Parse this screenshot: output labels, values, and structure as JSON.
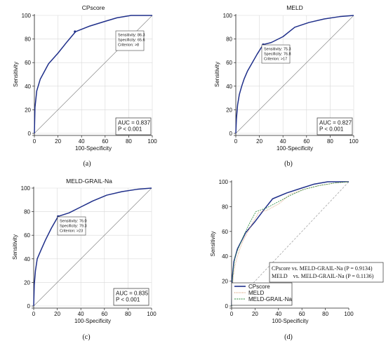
{
  "chart_data": [
    {
      "id": "a",
      "type": "line",
      "title": "CPscore",
      "caption": "(a)",
      "xlabel": "100-Specificity",
      "ylabel": "Sensitivity",
      "xlim": [
        0,
        100
      ],
      "ylim": [
        0,
        100
      ],
      "xticks": [
        0,
        20,
        40,
        60,
        80,
        100
      ],
      "yticks": [
        0,
        20,
        40,
        60,
        80,
        100
      ],
      "grid": true,
      "series": [
        {
          "x": [
            0,
            0.5,
            2,
            5,
            12,
            20,
            28,
            35,
            47,
            60,
            70,
            82,
            100
          ],
          "y": [
            0,
            22,
            36,
            46,
            59,
            68,
            78,
            86.3,
            91,
            95,
            98,
            100,
            100
          ]
        }
      ],
      "reference_line": true,
      "cut_point": {
        "x": 34.4,
        "y": 86.3
      },
      "annotation": [
        "Sensitivity: 86.3",
        "Specificity: 65.6",
        "Criterion: >8"
      ],
      "auc_box": [
        "AUC = 0.837",
        "P < 0.001"
      ]
    },
    {
      "id": "b",
      "type": "line",
      "title": "MELD",
      "caption": "(b)",
      "xlabel": "100-Specificity",
      "ylabel": "Sensitivity",
      "xlim": [
        0,
        100
      ],
      "ylim": [
        0,
        100
      ],
      "xticks": [
        0,
        20,
        40,
        60,
        80,
        100
      ],
      "yticks": [
        0,
        20,
        40,
        60,
        80,
        100
      ],
      "grid": true,
      "series": [
        {
          "x": [
            0,
            0.5,
            1.5,
            3,
            5,
            7,
            10,
            14,
            18,
            23.2,
            30,
            40,
            50,
            62,
            75,
            88,
            100
          ],
          "y": [
            0,
            12,
            24,
            33,
            40,
            46,
            53,
            60,
            67,
            75.3,
            77,
            82,
            90,
            94,
            97,
            99,
            100
          ]
        }
      ],
      "reference_line": true,
      "cut_point": {
        "x": 23.2,
        "y": 75.3
      },
      "annotation": [
        "Sensitivity: 75.3",
        "Specificity: 76.8",
        "Criterion: >17"
      ],
      "auc_box": [
        "AUC = 0.827",
        "P < 0.001"
      ]
    },
    {
      "id": "c",
      "type": "line",
      "title": "MELD-GRAIL-Na",
      "caption": "(c)",
      "xlabel": "100-Specificity",
      "ylabel": "Sensitivity",
      "xlim": [
        0,
        100
      ],
      "ylim": [
        0,
        100
      ],
      "xticks": [
        0,
        20,
        40,
        60,
        80,
        100
      ],
      "yticks": [
        0,
        20,
        40,
        60,
        80,
        100
      ],
      "grid": true,
      "series": [
        {
          "x": [
            0,
            0.5,
            1.5,
            3,
            6,
            10,
            15,
            20.7,
            30,
            40,
            50,
            62,
            75,
            88,
            100
          ],
          "y": [
            0,
            18,
            30,
            40,
            47,
            56,
            66,
            76,
            79,
            84,
            89,
            94,
            97,
            99,
            100
          ]
        }
      ],
      "reference_line": true,
      "cut_point": {
        "x": 20.7,
        "y": 76
      },
      "annotation": [
        "Sensitivity: 76.0",
        "Specificity: 79.3",
        "Criterion: >23"
      ],
      "auc_box": [
        "AUC = 0.835",
        "P < 0.001"
      ]
    },
    {
      "id": "d",
      "type": "line",
      "title": "",
      "caption": "(d)",
      "xlabel": "100-Specificity",
      "ylabel": "Sensitivity",
      "xlim": [
        0,
        100
      ],
      "ylim": [
        0,
        100
      ],
      "xticks": [
        0,
        20,
        40,
        60,
        80,
        100
      ],
      "yticks": [
        0,
        20,
        40,
        60,
        80,
        100
      ],
      "grid": false,
      "series": [
        {
          "name": "CPscore",
          "color": "#1f2f8a",
          "x": [
            0,
            0.5,
            2,
            5,
            12,
            20,
            28,
            35,
            47,
            60,
            70,
            82,
            100
          ],
          "y": [
            0,
            22,
            36,
            46,
            59,
            68,
            78,
            86.3,
            91,
            95,
            98,
            100,
            100
          ]
        },
        {
          "name": "MELD",
          "color": "#d08a5a",
          "x": [
            0,
            0.5,
            1.5,
            3,
            5,
            7,
            10,
            14,
            18,
            23.2,
            30,
            40,
            50,
            62,
            75,
            88,
            100
          ],
          "y": [
            0,
            12,
            24,
            33,
            40,
            46,
            53,
            60,
            67,
            75.3,
            77,
            82,
            90,
            94,
            97,
            99,
            100
          ]
        },
        {
          "name": "MELD-GRAIL-Na",
          "color": "#2a8a3a",
          "x": [
            0,
            0.5,
            1.5,
            3,
            6,
            10,
            15,
            20.7,
            30,
            40,
            50,
            62,
            75,
            88,
            100
          ],
          "y": [
            0,
            18,
            30,
            40,
            47,
            56,
            66,
            76,
            79,
            84,
            89,
            94,
            97,
            99,
            100
          ]
        }
      ],
      "reference_line": true,
      "comparison_box": [
        "CPscore vs. MELD-GRAIL-Na (P = 0.9134)",
        "MELD    vs. MELD-GRAIL-Na (P = 0.1136)"
      ],
      "legend": [
        "CPscore",
        "MELD",
        "MELD-GRAIL-Na"
      ],
      "legend_position": "bottom-left"
    }
  ]
}
